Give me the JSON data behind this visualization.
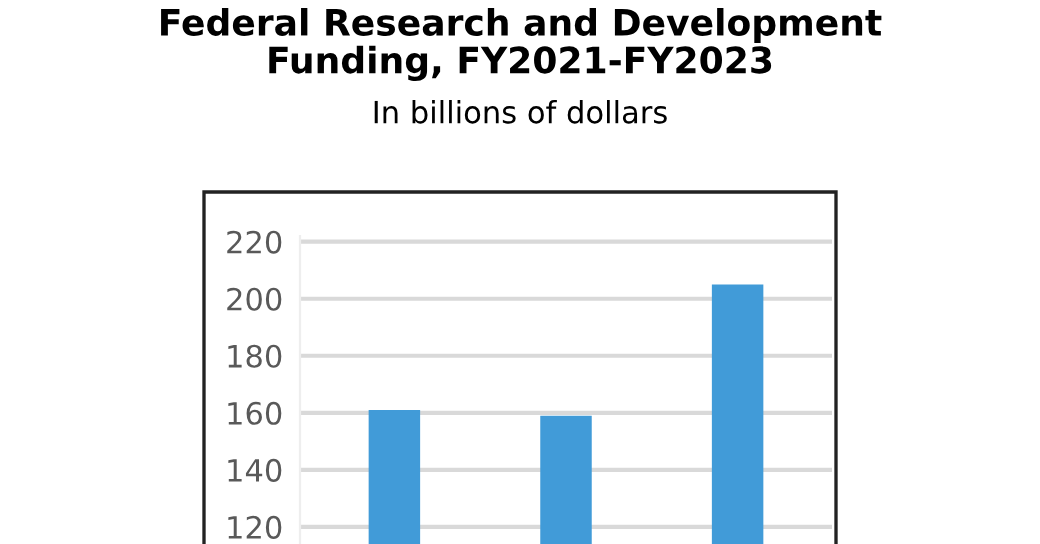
{
  "chart_data": {
    "type": "bar",
    "title": "Federal Research and Development\nFunding, FY2021-FY2023",
    "subtitle": "In billions of dollars",
    "categories": [
      null,
      null,
      null
    ],
    "values": [
      161,
      159,
      205
    ],
    "color": "#419bd8",
    "ylim": [
      114,
      222
    ],
    "yticks": [
      120,
      140,
      160,
      180,
      200,
      220
    ],
    "grid": "y"
  }
}
